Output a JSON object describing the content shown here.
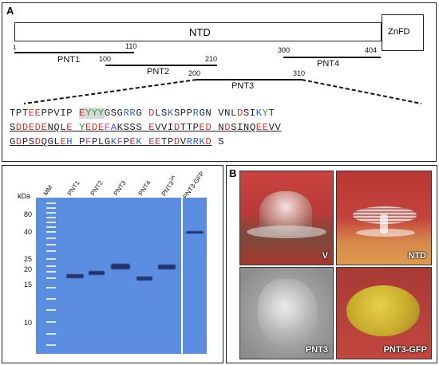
{
  "panel_a": {
    "letter": "A",
    "domains": {
      "ntd": "NTD",
      "znfd": "ZnFD"
    },
    "positions": {
      "p1": "1",
      "p110": "110",
      "p100": "100",
      "p210": "210",
      "p300": "300",
      "p404": "404",
      "p200": "200",
      "p310": "310"
    },
    "fragments": {
      "pnt1": "PNT1",
      "pnt2": "PNT2",
      "pnt3": "PNT3",
      "pnt4": "PNT4"
    }
  },
  "panel_b": {
    "letter": "B"
  },
  "gel": {
    "kda_label": "kDa",
    "markers": [
      "80",
      "40",
      "25",
      "20",
      "15",
      "10"
    ],
    "lanes": [
      "MM",
      "PNT1",
      "PNT2",
      "PNT3",
      "PNT4",
      "PNT3",
      "PNT3-GFP"
    ],
    "lane_superscript": "3A",
    "colors": {
      "gel": "#5b8de0",
      "band": "#22356e"
    }
  },
  "photos": [
    {
      "label": "V"
    },
    {
      "label": "NTD"
    },
    {
      "label": "PNT3"
    },
    {
      "label": "PNT3-GFP"
    }
  ]
}
